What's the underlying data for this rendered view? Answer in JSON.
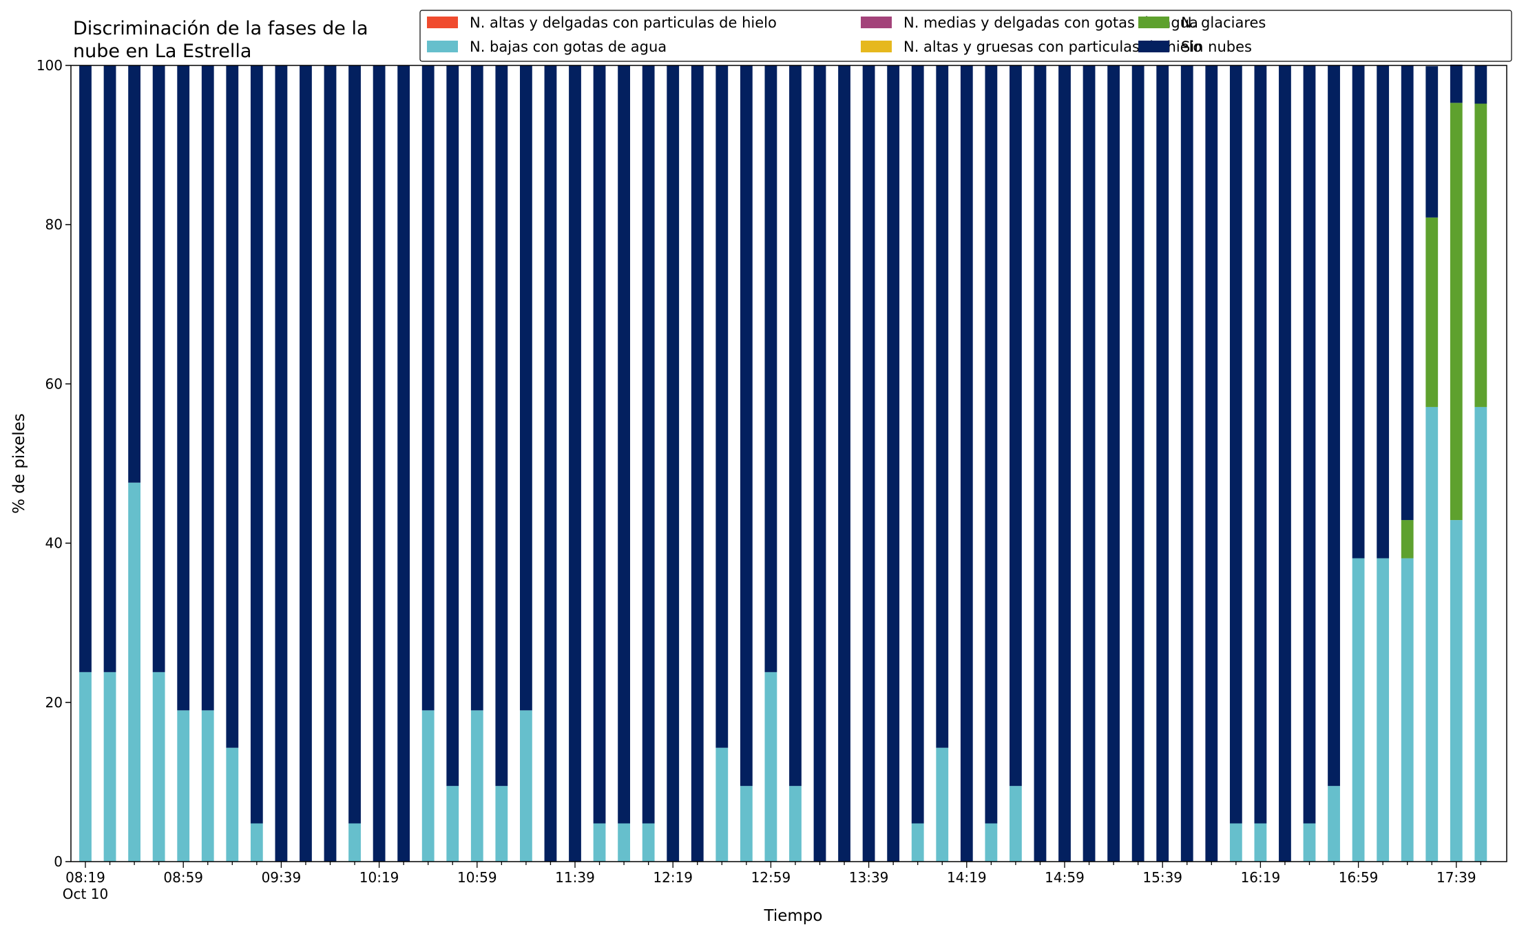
{
  "chart_data": {
    "type": "bar",
    "stacked": true,
    "title_lines": [
      "Discriminación de la fases de la",
      "nube en La Estrella"
    ],
    "xlabel": "Tiempo",
    "ylabel": "% de pixeles",
    "ylim": [
      0,
      100
    ],
    "yticks": [
      0,
      20,
      40,
      60,
      80,
      100
    ],
    "x_tick_labels": [
      "08:19",
      "08:59",
      "09:39",
      "10:19",
      "10:59",
      "11:39",
      "12:19",
      "12:59",
      "13:39",
      "14:19",
      "14:59",
      "15:39",
      "16:19",
      "16:59",
      "17:39"
    ],
    "x_date_label": "Oct 10",
    "x_tick_every": 4,
    "categories": [
      "08:19",
      "08:29",
      "08:39",
      "08:49",
      "08:59",
      "09:09",
      "09:19",
      "09:29",
      "09:39",
      "09:49",
      "09:59",
      "10:09",
      "10:19",
      "10:29",
      "10:39",
      "10:49",
      "10:59",
      "11:09",
      "11:19",
      "11:29",
      "11:39",
      "11:49",
      "11:59",
      "12:09",
      "12:19",
      "12:29",
      "12:39",
      "12:49",
      "12:59",
      "13:09",
      "13:19",
      "13:29",
      "13:39",
      "13:49",
      "13:59",
      "14:09",
      "14:19",
      "14:29",
      "14:39",
      "14:49",
      "14:59",
      "15:09",
      "15:19",
      "15:29",
      "15:39",
      "15:49",
      "15:59",
      "16:09",
      "16:19",
      "16:29",
      "16:39",
      "16:49",
      "16:59",
      "17:09",
      "17:19",
      "17:29",
      "17:39",
      "17:49"
    ],
    "series": [
      {
        "name": "N. altas y delgadas con particulas de hielo",
        "color": "#f04b2e",
        "values": [
          0,
          0,
          0,
          0,
          0,
          0,
          0,
          0,
          0,
          0,
          0,
          0,
          0,
          0,
          0,
          0,
          0,
          0,
          0,
          0,
          0,
          0,
          0,
          0,
          0,
          0,
          0,
          0,
          0,
          0,
          0,
          0,
          0,
          0,
          0,
          0,
          0,
          0,
          0,
          0,
          0,
          0,
          0,
          0,
          0,
          0,
          0,
          0,
          0,
          0,
          0,
          0,
          0,
          0,
          0,
          0,
          0,
          0
        ]
      },
      {
        "name": "N. altas y gruesas con particulas de hielo",
        "color": "#e6b81e",
        "values": [
          0,
          0,
          0,
          0,
          0,
          0,
          0,
          0,
          0,
          0,
          0,
          0,
          0,
          0,
          0,
          0,
          0,
          0,
          0,
          0,
          0,
          0,
          0,
          0,
          0,
          0,
          0,
          0,
          0,
          0,
          0,
          0,
          0,
          0,
          0,
          0,
          0,
          0,
          0,
          0,
          0,
          0,
          0,
          0,
          0,
          0,
          0,
          0,
          0,
          0,
          0,
          0,
          0,
          0,
          0,
          0,
          0,
          0
        ]
      },
      {
        "name": "N. bajas con gotas de agua",
        "color": "#66bfcc",
        "values": [
          23.8,
          23.8,
          47.6,
          23.8,
          19.0,
          19.0,
          14.3,
          4.8,
          0,
          0,
          0,
          4.8,
          0,
          0,
          19.0,
          9.5,
          19.0,
          9.5,
          19.0,
          0,
          0,
          4.8,
          4.8,
          4.8,
          0,
          0,
          14.3,
          9.5,
          23.8,
          9.5,
          0,
          0,
          0,
          0,
          4.8,
          14.3,
          0,
          4.8,
          9.5,
          0,
          0,
          0,
          0,
          0,
          0,
          0,
          0,
          4.8,
          4.8,
          0,
          4.8,
          9.5,
          38.1,
          38.1,
          38.1,
          57.1,
          42.9,
          57.1
        ]
      },
      {
        "name": "N. glaciares",
        "color": "#5ea12e",
        "values": [
          0,
          0,
          0,
          0,
          0,
          0,
          0,
          0,
          0,
          0,
          0,
          0,
          0,
          0,
          0,
          0,
          0,
          0,
          0,
          0,
          0,
          0,
          0,
          0,
          0,
          0,
          0,
          0,
          0,
          0,
          0,
          0,
          0,
          0,
          0,
          0,
          0,
          0,
          0,
          0,
          0,
          0,
          0,
          0,
          0,
          0,
          0,
          0,
          0,
          0,
          0,
          0,
          0,
          0,
          4.8,
          23.8,
          52.4,
          38.1
        ]
      },
      {
        "name": "N. medias y delgadas con gotas de agua",
        "color": "#a3437a",
        "values": [
          0,
          0,
          0,
          0,
          0,
          0,
          0,
          0,
          0,
          0,
          0,
          0,
          0,
          0,
          0,
          0,
          0,
          0,
          0,
          0,
          0,
          0,
          0,
          0,
          0,
          0,
          0,
          0,
          0,
          0,
          0,
          0,
          0,
          0,
          0,
          0,
          0,
          0,
          0,
          0,
          0,
          0,
          0,
          0,
          0,
          0,
          0,
          0,
          0,
          0,
          0,
          0,
          0,
          0,
          0,
          0,
          0,
          0
        ]
      },
      {
        "name": "Sin nubes",
        "color": "#03205f",
        "values": [
          76.2,
          76.2,
          52.4,
          76.2,
          81.0,
          81.0,
          85.7,
          95.2,
          100,
          100,
          100,
          95.2,
          100,
          100,
          81.0,
          90.5,
          81.0,
          90.5,
          81.0,
          100,
          100,
          95.2,
          95.2,
          95.2,
          100,
          100,
          85.7,
          90.5,
          76.2,
          90.5,
          100,
          100,
          100,
          100,
          95.2,
          85.7,
          100,
          95.2,
          90.5,
          100,
          100,
          100,
          100,
          100,
          100,
          100,
          100,
          95.2,
          95.2,
          100,
          95.2,
          90.5,
          61.9,
          61.9,
          57.1,
          19.0,
          4.8,
          4.8
        ]
      }
    ],
    "legend_order": [
      0,
      2,
      4,
      1,
      3,
      5
    ],
    "legend_position": "top-right",
    "legend_columns": 3,
    "grid": false
  }
}
